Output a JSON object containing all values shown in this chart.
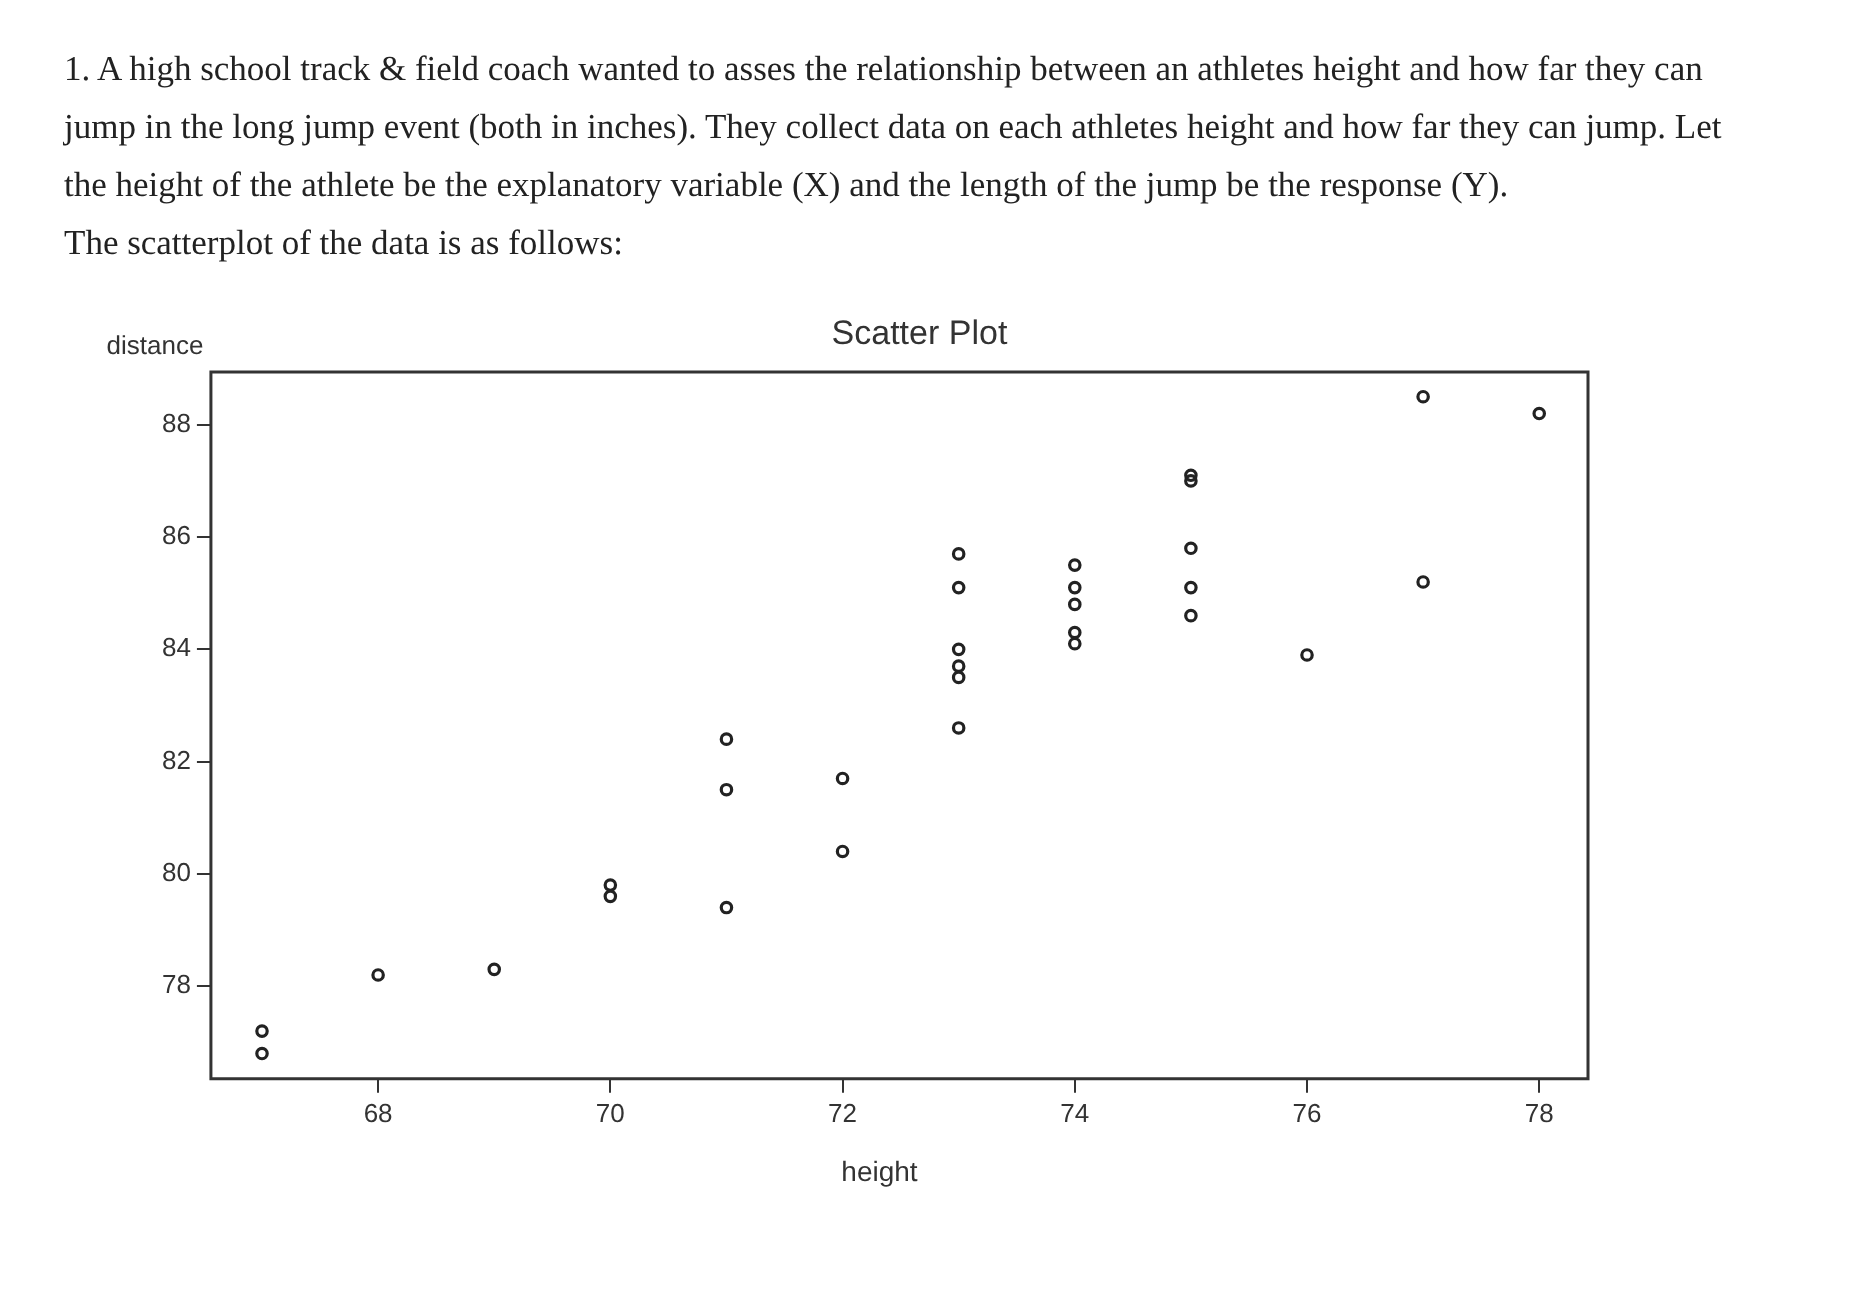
{
  "chart_data": {
    "type": "scatter",
    "title": "Scatter Plot",
    "xlabel": "height",
    "ylabel": "distance",
    "annotations": [
      "1. A high school track & field coach wanted to asses the relationship between an athletes height and how far they can jump in the long jump event (both in inches). They collect data on each athletes height and how far they can jump. Let the height of the athlete be the explanatory variable (X) and the length of the jump be the response (Y).",
      "The scatterplot of the data is as follows:"
    ],
    "x": [
      67,
      67,
      68,
      69,
      70,
      70,
      71,
      71,
      71,
      72,
      72,
      73,
      73,
      73,
      73,
      73,
      73,
      74,
      74,
      74,
      74,
      74,
      75,
      75,
      75,
      75,
      75,
      76,
      77,
      77,
      78
    ],
    "values": [
      77.2,
      76.8,
      78.2,
      78.3,
      79.8,
      79.6,
      82.4,
      81.5,
      79.4,
      81.7,
      80.4,
      85.7,
      85.1,
      84.0,
      83.7,
      83.5,
      82.6,
      85.5,
      85.1,
      84.8,
      84.3,
      84.1,
      87.1,
      87.0,
      85.8,
      85.1,
      84.6,
      83.9,
      88.5,
      85.2,
      88.2
    ],
    "color": "#222222",
    "marker": "circle",
    "xlim": [
      66.56,
      78.42
    ],
    "ylim": [
      76.35,
      88.94
    ],
    "xticks": [
      68,
      70,
      72,
      74,
      76,
      78
    ],
    "yticks": [
      78,
      80,
      82,
      84,
      86,
      88
    ]
  }
}
